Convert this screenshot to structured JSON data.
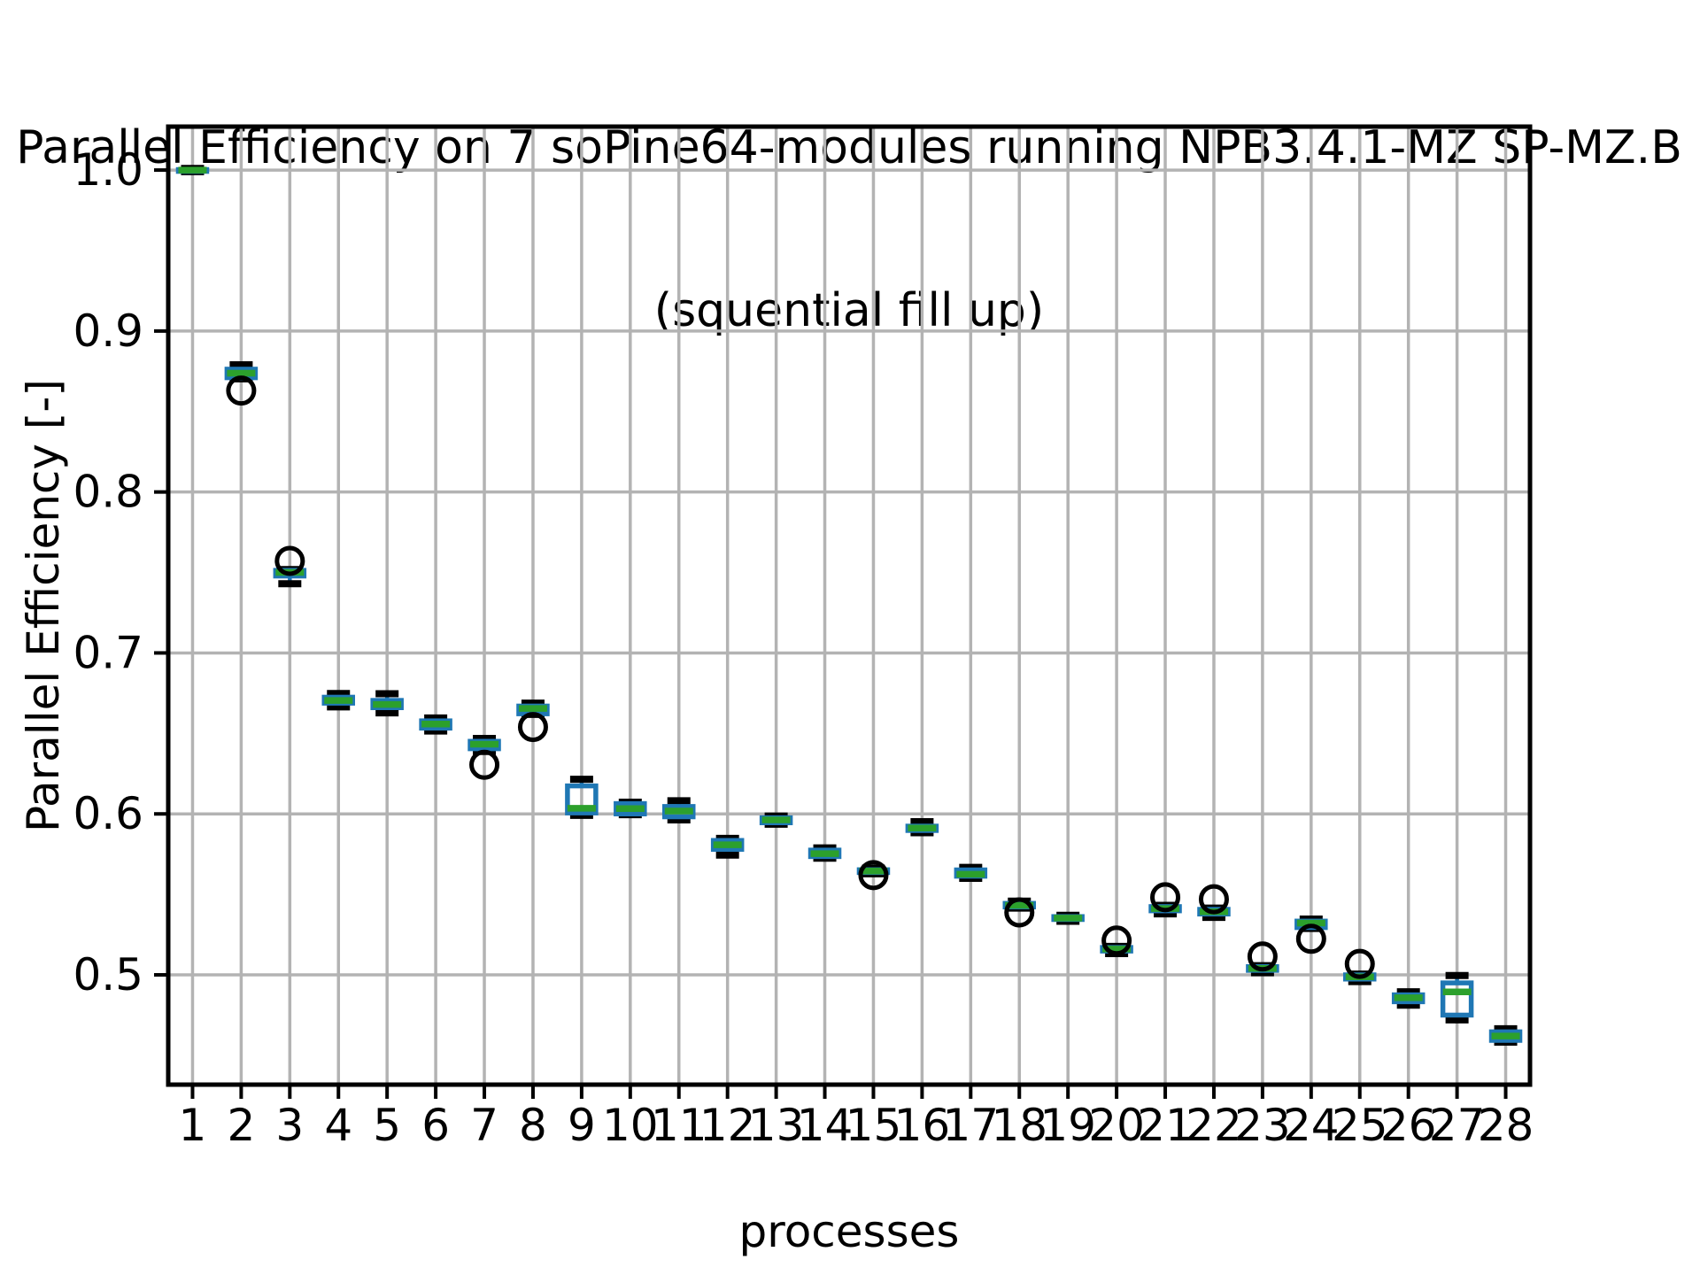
{
  "figure": {
    "title_line1": "Parallel Efficiency on 7 soPine64-modules running NPB3.4.1-MZ SP-MZ.B",
    "title_line2": "(squential fill up)"
  },
  "chart_data": {
    "type": "boxplot",
    "title": "Parallel Efficiency on 7 soPine64-modules running NPB3.4.1-MZ SP-MZ.B (squential fill up)",
    "xlabel": "processes",
    "ylabel": "Parallel Efficiency [-]",
    "x_tick_labels": [
      "1",
      "2",
      "3",
      "4",
      "5",
      "6",
      "7",
      "8",
      "9",
      "10",
      "11",
      "12",
      "13",
      "14",
      "15",
      "16",
      "17",
      "18",
      "19",
      "20",
      "21",
      "22",
      "23",
      "24",
      "25",
      "26",
      "27",
      "28"
    ],
    "y_tick_labels": [
      "1.0",
      "0.9",
      "0.8",
      "0.7",
      "0.6",
      "0.5"
    ],
    "y_tick_values": [
      1.0,
      0.9,
      0.8,
      0.7,
      0.6,
      0.5
    ],
    "xlim": [
      0.5,
      28.5
    ],
    "ylim": [
      0.4318,
      1.027
    ],
    "grid": true,
    "legend": null,
    "colors": {
      "box": "#1f77b4",
      "whisker": "#1f77b4",
      "median": "#2ca02c",
      "cap": "#000000",
      "flier": "#000000",
      "grid": "#b3b3b3",
      "spine": "#000000"
    },
    "boxes": [
      {
        "x": 1,
        "whislo": 0.999,
        "q1": 0.9997,
        "med": 1.0,
        "q3": 1.0003,
        "whishi": 1.001,
        "fliers": []
      },
      {
        "x": 2,
        "whislo": 0.8703,
        "q1": 0.871,
        "med": 0.8738,
        "q3": 0.8763,
        "whishi": 0.879,
        "fliers": [
          0.863
        ]
      },
      {
        "x": 3,
        "whislo": 0.743,
        "q1": 0.7478,
        "med": 0.75,
        "q3": 0.7513,
        "whishi": 0.7518,
        "fliers": [
          0.7572
        ]
      },
      {
        "x": 4,
        "whislo": 0.6665,
        "q1": 0.6688,
        "med": 0.6705,
        "q3": 0.6725,
        "whishi": 0.6748,
        "fliers": []
      },
      {
        "x": 5,
        "whislo": 0.6628,
        "q1": 0.666,
        "med": 0.668,
        "q3": 0.6705,
        "whishi": 0.6747,
        "fliers": []
      },
      {
        "x": 6,
        "whislo": 0.6515,
        "q1": 0.6533,
        "med": 0.6558,
        "q3": 0.6578,
        "whishi": 0.6596,
        "fliers": []
      },
      {
        "x": 7,
        "whislo": 0.6388,
        "q1": 0.6405,
        "med": 0.6433,
        "q3": 0.6451,
        "whishi": 0.6469,
        "fliers": [
          0.6305
        ]
      },
      {
        "x": 8,
        "whislo": 0.6618,
        "q1": 0.6622,
        "med": 0.6655,
        "q3": 0.667,
        "whishi": 0.6688,
        "fliers": [
          0.654
        ]
      },
      {
        "x": 9,
        "whislo": 0.5991,
        "q1": 0.6006,
        "med": 0.6035,
        "q3": 0.6174,
        "whishi": 0.6215,
        "fliers": []
      },
      {
        "x": 10,
        "whislo": 0.5995,
        "q1": 0.6,
        "med": 0.6033,
        "q3": 0.6064,
        "whishi": 0.6073,
        "fliers": []
      },
      {
        "x": 11,
        "whislo": 0.5963,
        "q1": 0.5982,
        "med": 0.6018,
        "q3": 0.6046,
        "whishi": 0.6082,
        "fliers": []
      },
      {
        "x": 12,
        "whislo": 0.5744,
        "q1": 0.578,
        "med": 0.5808,
        "q3": 0.5835,
        "whishi": 0.5848,
        "fliers": []
      },
      {
        "x": 13,
        "whislo": 0.5936,
        "q1": 0.5945,
        "med": 0.5963,
        "q3": 0.5976,
        "whishi": 0.5987,
        "fliers": []
      },
      {
        "x": 14,
        "whislo": 0.5725,
        "q1": 0.5735,
        "med": 0.5753,
        "q3": 0.5775,
        "whishi": 0.5789,
        "fliers": []
      },
      {
        "x": 15,
        "whislo": 0.5628,
        "q1": 0.5636,
        "med": 0.5645,
        "q3": 0.5653,
        "whishi": 0.5662,
        "fliers": [
          0.562
        ]
      },
      {
        "x": 16,
        "whislo": 0.5883,
        "q1": 0.5897,
        "med": 0.5912,
        "q3": 0.5924,
        "whishi": 0.5952,
        "fliers": []
      },
      {
        "x": 17,
        "whislo": 0.56,
        "q1": 0.5613,
        "med": 0.5625,
        "q3": 0.5652,
        "whishi": 0.5668,
        "fliers": []
      },
      {
        "x": 18,
        "whislo": 0.5415,
        "q1": 0.5422,
        "med": 0.5432,
        "q3": 0.5444,
        "whishi": 0.5458,
        "fliers": [
          0.5388
        ]
      },
      {
        "x": 19,
        "whislo": 0.5333,
        "q1": 0.5344,
        "med": 0.5353,
        "q3": 0.5362,
        "whishi": 0.537,
        "fliers": []
      },
      {
        "x": 20,
        "whislo": 0.5132,
        "q1": 0.5148,
        "med": 0.516,
        "q3": 0.517,
        "whishi": 0.5177,
        "fliers": [
          0.5213
        ]
      },
      {
        "x": 21,
        "whislo": 0.5379,
        "q1": 0.5398,
        "med": 0.5412,
        "q3": 0.5424,
        "whishi": 0.5432,
        "fliers": [
          0.5482
        ]
      },
      {
        "x": 22,
        "whislo": 0.5357,
        "q1": 0.5378,
        "med": 0.5392,
        "q3": 0.5407,
        "whishi": 0.5415,
        "fliers": [
          0.547
        ]
      },
      {
        "x": 23,
        "whislo": 0.5013,
        "q1": 0.5028,
        "med": 0.504,
        "q3": 0.5051,
        "whishi": 0.5057,
        "fliers": [
          0.5114
        ]
      },
      {
        "x": 24,
        "whislo": 0.5288,
        "q1": 0.5294,
        "med": 0.5322,
        "q3": 0.5334,
        "whishi": 0.5347,
        "fliers": [
          0.5224
        ]
      },
      {
        "x": 25,
        "whislo": 0.4958,
        "q1": 0.4974,
        "med": 0.4988,
        "q3": 0.5,
        "whishi": 0.5005,
        "fliers": [
          0.5068
        ]
      },
      {
        "x": 26,
        "whislo": 0.4812,
        "q1": 0.4833,
        "med": 0.4858,
        "q3": 0.4876,
        "whishi": 0.4895,
        "fliers": []
      },
      {
        "x": 27,
        "whislo": 0.472,
        "q1": 0.475,
        "med": 0.4894,
        "q3": 0.495,
        "whishi": 0.4996,
        "fliers": []
      },
      {
        "x": 28,
        "whislo": 0.4582,
        "q1": 0.4593,
        "med": 0.462,
        "q3": 0.4646,
        "whishi": 0.4665,
        "fliers": []
      }
    ]
  }
}
